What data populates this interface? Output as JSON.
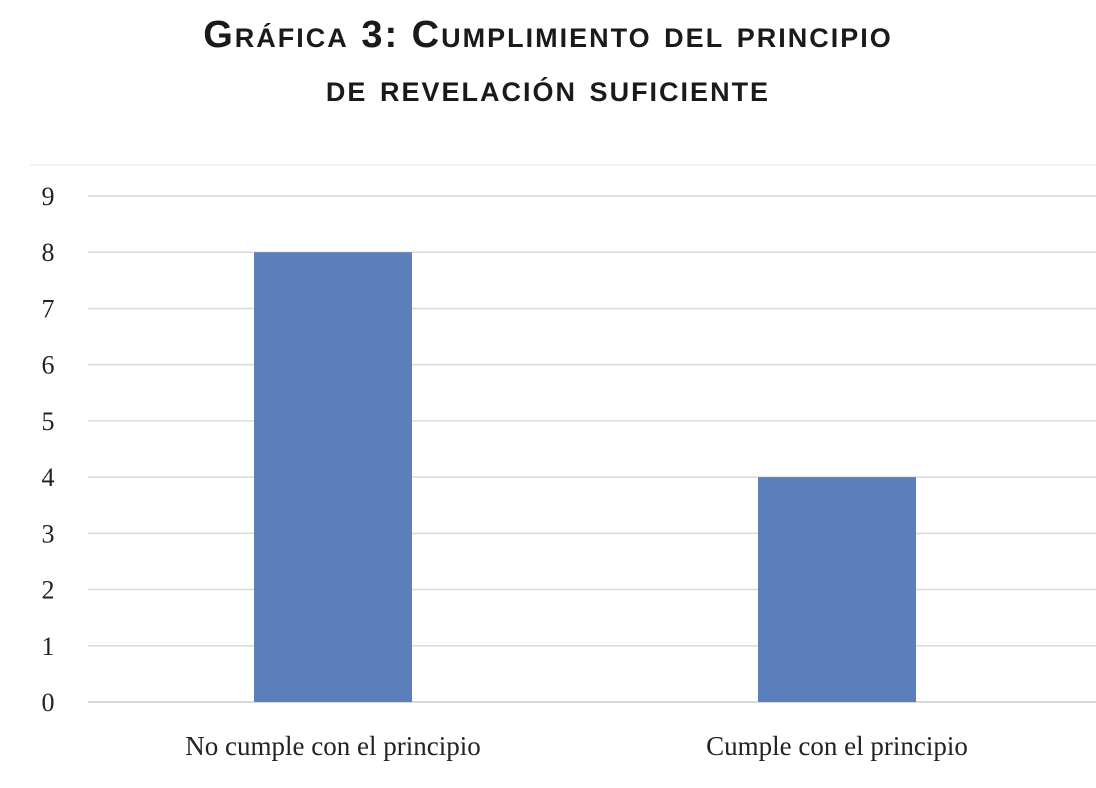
{
  "chart_data": {
    "type": "bar",
    "title_line1": "Gráfica 3: Cumplimiento del principio",
    "title_line2": "de revelación suficiente",
    "categories": [
      "No cumple con el principio",
      "Cumple con el principio"
    ],
    "values": [
      8,
      4
    ],
    "ylim": [
      0,
      9
    ],
    "yticks": [
      0,
      1,
      2,
      3,
      4,
      5,
      6,
      7,
      8,
      9
    ],
    "grid": true,
    "legend": "none",
    "bar_color": "#5b7fba",
    "grid_color": "#d9d9d9"
  }
}
